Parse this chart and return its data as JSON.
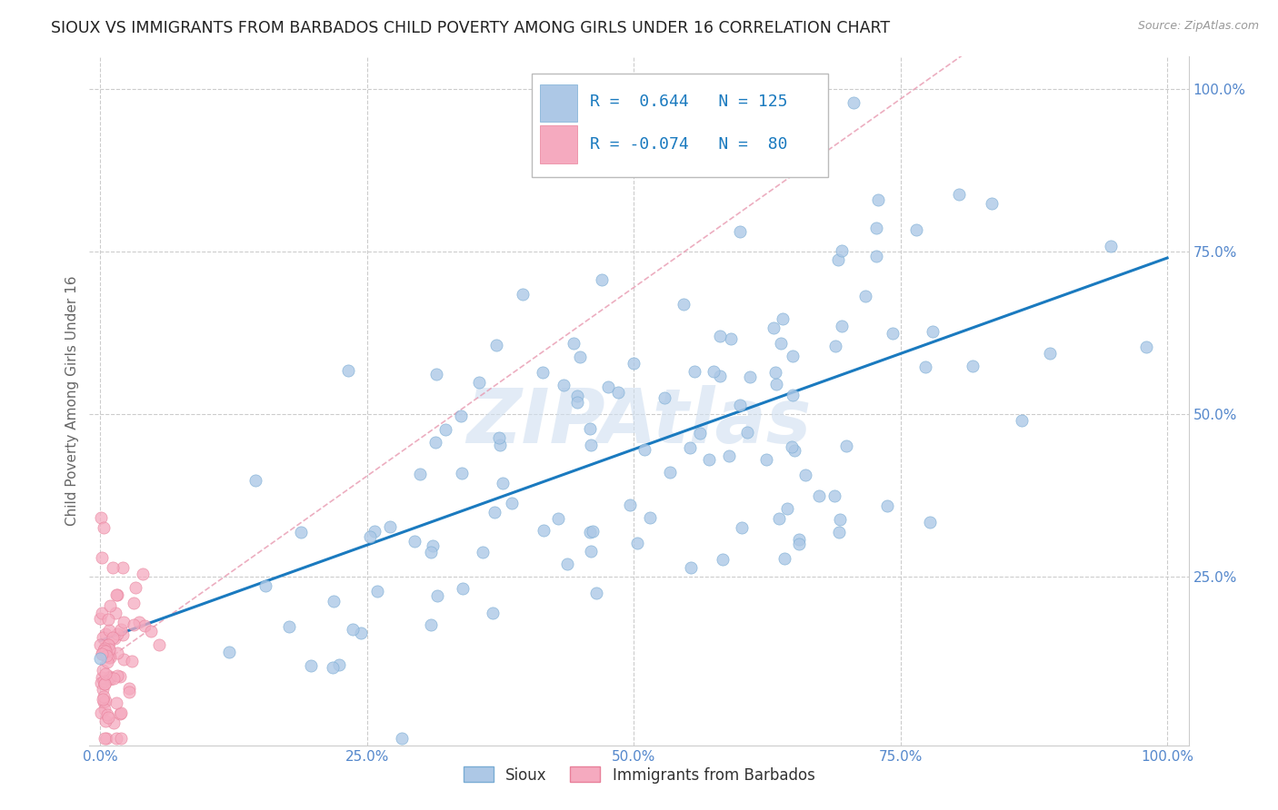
{
  "title": "SIOUX VS IMMIGRANTS FROM BARBADOS CHILD POVERTY AMONG GIRLS UNDER 16 CORRELATION CHART",
  "source": "Source: ZipAtlas.com",
  "ylabel": "Child Poverty Among Girls Under 16",
  "sioux_R": 0.644,
  "sioux_N": 125,
  "barbados_R": -0.074,
  "barbados_N": 80,
  "sioux_color": "#adc8e6",
  "sioux_edge": "#7aadd4",
  "barbados_color": "#f5aabf",
  "barbados_edge": "#e8809a",
  "regression_color": "#1a7abf",
  "barbados_reg_color": "#e899b0",
  "background_color": "#ffffff",
  "grid_color": "#cccccc",
  "axis_label_color": "#5588cc",
  "watermark_color": "#d0dff0",
  "xtick_labels": [
    "0.0%",
    "25.0%",
    "50.0%",
    "75.0%",
    "100.0%"
  ],
  "xtick_positions": [
    0.0,
    0.25,
    0.5,
    0.75,
    1.0
  ],
  "ytick_labels": [
    "25.0%",
    "50.0%",
    "75.0%",
    "100.0%"
  ],
  "ytick_positions": [
    0.25,
    0.5,
    0.75,
    1.0
  ],
  "legend_labels": [
    "Sioux",
    "Immigrants from Barbados"
  ]
}
